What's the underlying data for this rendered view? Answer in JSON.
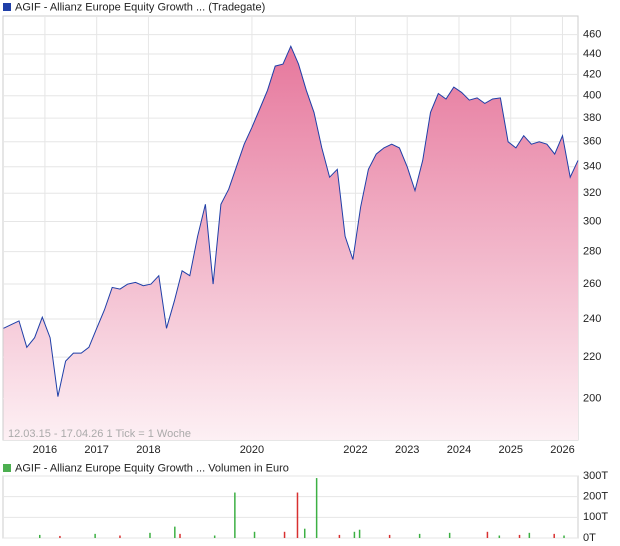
{
  "chart_data": [
    {
      "type": "area",
      "title": "AGIF - Allianz Europe Equity Growth ... (Tradegate)",
      "note": "12.03.15 - 17.04.26   1 Tick = 1 Woche",
      "color": "#1f3fa8",
      "fill_color": "#e6779c",
      "legend_color": "#1f3fa8",
      "log_scale": true,
      "grid": true,
      "x": [
        2015.2,
        2015.35,
        2015.5,
        2015.65,
        2015.8,
        2015.95,
        2016.1,
        2016.25,
        2016.4,
        2016.55,
        2016.7,
        2016.85,
        2017,
        2017.15,
        2017.3,
        2017.45,
        2017.6,
        2017.75,
        2017.9,
        2018.05,
        2018.2,
        2018.35,
        2018.5,
        2018.65,
        2018.8,
        2018.95,
        2019.1,
        2019.25,
        2019.4,
        2019.55,
        2019.7,
        2019.85,
        2020,
        2020.15,
        2020.3,
        2020.45,
        2020.6,
        2020.75,
        2020.9,
        2021.05,
        2021.2,
        2021.35,
        2021.5,
        2021.65,
        2021.8,
        2021.95,
        2022.1,
        2022.25,
        2022.4,
        2022.55,
        2022.7,
        2022.85,
        2023,
        2023.15,
        2023.3,
        2023.45,
        2023.6,
        2023.75,
        2023.9,
        2024.05,
        2024.2,
        2024.35,
        2024.5,
        2024.65,
        2024.8,
        2024.95,
        2025.1,
        2025.25,
        2025.4,
        2025.55,
        2025.7,
        2025.85,
        2026,
        2026.15,
        2026.3
      ],
      "values": [
        235,
        237,
        239,
        225,
        230,
        241,
        230,
        201,
        218,
        222,
        222,
        225,
        235,
        245,
        258,
        257,
        260,
        261,
        259,
        260,
        265,
        235,
        250,
        268,
        265,
        290,
        312,
        260,
        312,
        323,
        340,
        358,
        372,
        388,
        405,
        428,
        430,
        448,
        430,
        405,
        385,
        355,
        332,
        338,
        290,
        275,
        310,
        338,
        350,
        355,
        358,
        355,
        340,
        322,
        345,
        385,
        402,
        397,
        408,
        403,
        396,
        398,
        393,
        397,
        398,
        360,
        355,
        365,
        358,
        360,
        358,
        350,
        365,
        332,
        345
      ],
      "xlim": [
        2015.19,
        2026.3
      ],
      "xticks": [
        2016,
        2017,
        2018,
        2020,
        2022,
        2023,
        2024,
        2025,
        2026
      ],
      "ylim": [
        182,
        480
      ],
      "yticks": [
        200,
        220,
        240,
        260,
        280,
        300,
        320,
        340,
        360,
        380,
        400,
        420,
        440,
        460
      ]
    },
    {
      "type": "bar",
      "title": "AGIF - Allianz Europe Equity Growth ... Volumen in Euro",
      "legend_color": "#4caf50",
      "x": [
        2015.9,
        2016.29,
        2016.97,
        2017.45,
        2018.03,
        2018.51,
        2018.61,
        2019.28,
        2019.67,
        2020.05,
        2020.63,
        2020.88,
        2021.02,
        2021.25,
        2021.69,
        2021.98,
        2022.08,
        2022.66,
        2023.24,
        2023.82,
        2024.55,
        2024.78,
        2025.17,
        2025.36,
        2025.84,
        2026.03
      ],
      "values": [
        15,
        10,
        20,
        12,
        25,
        55,
        20,
        12,
        220,
        30,
        30,
        220,
        45,
        290,
        15,
        30,
        40,
        15,
        20,
        25,
        30,
        12,
        15,
        25,
        20,
        12
      ],
      "colors": [
        "#3cb043",
        "#d83030",
        "#3cb043",
        "#d83030",
        "#3cb043",
        "#3cb043",
        "#d83030",
        "#3cb043",
        "#3cb043",
        "#3cb043",
        "#d83030",
        "#d83030",
        "#3cb043",
        "#3cb043",
        "#d83030",
        "#3cb043",
        "#3cb043",
        "#d83030",
        "#3cb043",
        "#3cb043",
        "#d83030",
        "#3cb043",
        "#d83030",
        "#3cb043",
        "#d83030",
        "#3cb043"
      ],
      "xlim": [
        2015.19,
        2026.3
      ],
      "ylim": [
        0,
        300
      ],
      "yticks": [
        {
          "value": 0,
          "label": "0T"
        },
        {
          "value": 100,
          "label": "100T"
        },
        {
          "value": 200,
          "label": "200T"
        },
        {
          "value": 300,
          "label": "300T"
        }
      ]
    }
  ]
}
